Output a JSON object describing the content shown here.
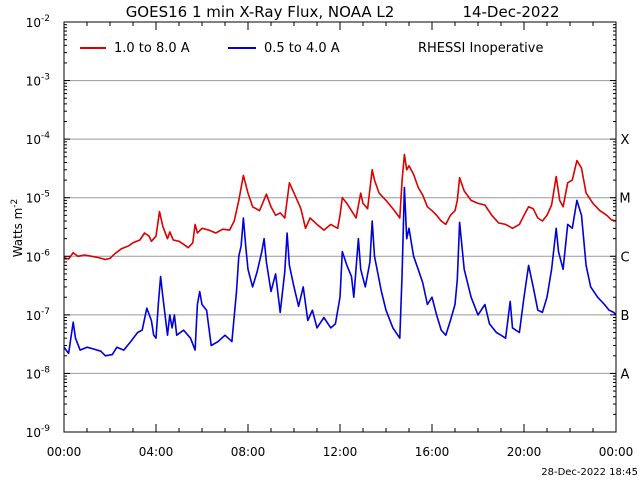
{
  "chart_data": {
    "type": "line",
    "title": "GOES16 1 min X-Ray Flux, NOAA L2",
    "date": "14-Dec-2022",
    "ylabel_main": "Watts m",
    "ylabel_sup": "-2",
    "y_scale": "log",
    "ylim": [
      1e-09,
      0.01
    ],
    "y_ticks": [
      {
        "base": "10",
        "exp": "-2",
        "value": 0.01
      },
      {
        "base": "10",
        "exp": "-3",
        "value": 0.001
      },
      {
        "base": "10",
        "exp": "-4",
        "value": 0.0001
      },
      {
        "base": "10",
        "exp": "-5",
        "value": 1e-05
      },
      {
        "base": "10",
        "exp": "-6",
        "value": 1e-06
      },
      {
        "base": "10",
        "exp": "-7",
        "value": 1e-07
      },
      {
        "base": "10",
        "exp": "-8",
        "value": 1e-08
      },
      {
        "base": "10",
        "exp": "-9",
        "value": 1e-09
      }
    ],
    "x_hours_range": [
      0,
      24
    ],
    "x_ticks": [
      "00:00",
      "04:00",
      "08:00",
      "12:00",
      "16:00",
      "20:00",
      "00:00"
    ],
    "flare_classes": [
      {
        "label": "X",
        "value": 0.0001
      },
      {
        "label": "M",
        "value": 1e-05
      },
      {
        "label": "C",
        "value": 1e-06
      },
      {
        "label": "B",
        "value": 1e-07
      },
      {
        "label": "A",
        "value": 1e-08
      }
    ],
    "grid": "horizontal at each decade",
    "legend_position": "top",
    "note": "RHESSI Inoperative",
    "series": [
      {
        "name": "1.0 to 8.0 A",
        "color": "#dd0000",
        "points": [
          [
            0.0,
            9.5e-07
          ],
          [
            0.2,
            9e-07
          ],
          [
            0.4,
            1.15e-06
          ],
          [
            0.6,
            1e-06
          ],
          [
            0.9,
            1.05e-06
          ],
          [
            1.2,
            1e-06
          ],
          [
            1.5,
            9.5e-07
          ],
          [
            1.8,
            8.8e-07
          ],
          [
            2.0,
            9.2e-07
          ],
          [
            2.2,
            1.1e-06
          ],
          [
            2.5,
            1.35e-06
          ],
          [
            2.8,
            1.5e-06
          ],
          [
            3.0,
            1.7e-06
          ],
          [
            3.3,
            1.9e-06
          ],
          [
            3.5,
            2.5e-06
          ],
          [
            3.7,
            2.2e-06
          ],
          [
            3.8,
            1.8e-06
          ],
          [
            4.0,
            2.2e-06
          ],
          [
            4.15,
            5.8e-06
          ],
          [
            4.3,
            3.2e-06
          ],
          [
            4.5,
            2e-06
          ],
          [
            4.6,
            2.6e-06
          ],
          [
            4.75,
            1.9e-06
          ],
          [
            5.0,
            1.8e-06
          ],
          [
            5.2,
            1.6e-06
          ],
          [
            5.4,
            1.4e-06
          ],
          [
            5.6,
            1.7e-06
          ],
          [
            5.7,
            3.5e-06
          ],
          [
            5.8,
            2.5e-06
          ],
          [
            6.0,
            3e-06
          ],
          [
            6.3,
            2.8e-06
          ],
          [
            6.6,
            2.5e-06
          ],
          [
            6.9,
            2.9e-06
          ],
          [
            7.2,
            2.8e-06
          ],
          [
            7.4,
            4e-06
          ],
          [
            7.6,
            9e-06
          ],
          [
            7.8,
            2.4e-05
          ],
          [
            8.0,
            1.2e-05
          ],
          [
            8.2,
            7e-06
          ],
          [
            8.5,
            6e-06
          ],
          [
            8.8,
            1.15e-05
          ],
          [
            9.0,
            7e-06
          ],
          [
            9.2,
            5e-06
          ],
          [
            9.4,
            5.5e-06
          ],
          [
            9.6,
            4.5e-06
          ],
          [
            9.8,
            1.8e-05
          ],
          [
            10.0,
            1.2e-05
          ],
          [
            10.3,
            6.5e-06
          ],
          [
            10.5,
            3e-06
          ],
          [
            10.7,
            4.5e-06
          ],
          [
            11.0,
            3.5e-06
          ],
          [
            11.3,
            2.8e-06
          ],
          [
            11.6,
            3.5e-06
          ],
          [
            11.9,
            3e-06
          ],
          [
            12.0,
            5e-06
          ],
          [
            12.1,
            1e-05
          ],
          [
            12.3,
            8e-06
          ],
          [
            12.5,
            6e-06
          ],
          [
            12.7,
            4.5e-06
          ],
          [
            12.9,
            1.2e-05
          ],
          [
            13.0,
            8e-06
          ],
          [
            13.2,
            6.5e-06
          ],
          [
            13.4,
            3e-05
          ],
          [
            13.5,
            2e-05
          ],
          [
            13.7,
            1.2e-05
          ],
          [
            14.0,
            9e-06
          ],
          [
            14.3,
            6.5e-06
          ],
          [
            14.6,
            4.5e-06
          ],
          [
            14.7,
            2e-05
          ],
          [
            14.8,
            5.5e-05
          ],
          [
            14.9,
            3e-05
          ],
          [
            15.0,
            3.5e-05
          ],
          [
            15.2,
            2.5e-05
          ],
          [
            15.4,
            1.5e-05
          ],
          [
            15.6,
            1.1e-05
          ],
          [
            15.8,
            7e-06
          ],
          [
            16.0,
            6e-06
          ],
          [
            16.2,
            5e-06
          ],
          [
            16.4,
            4e-06
          ],
          [
            16.6,
            3.5e-06
          ],
          [
            16.8,
            5e-06
          ],
          [
            17.0,
            6e-06
          ],
          [
            17.1,
            9e-06
          ],
          [
            17.2,
            2.2e-05
          ],
          [
            17.4,
            1.3e-05
          ],
          [
            17.7,
            9e-06
          ],
          [
            18.0,
            8e-06
          ],
          [
            18.3,
            7.5e-06
          ],
          [
            18.6,
            5e-06
          ],
          [
            18.9,
            3.7e-06
          ],
          [
            19.2,
            3.5e-06
          ],
          [
            19.5,
            3e-06
          ],
          [
            19.8,
            3.5e-06
          ],
          [
            20.0,
            5e-06
          ],
          [
            20.2,
            7e-06
          ],
          [
            20.4,
            6.5e-06
          ],
          [
            20.6,
            4.5e-06
          ],
          [
            20.8,
            4e-06
          ],
          [
            21.0,
            5e-06
          ],
          [
            21.2,
            7.5e-06
          ],
          [
            21.4,
            2.3e-05
          ],
          [
            21.55,
            9e-06
          ],
          [
            21.7,
            7e-06
          ],
          [
            21.9,
            1.8e-05
          ],
          [
            22.1,
            2e-05
          ],
          [
            22.3,
            4.3e-05
          ],
          [
            22.5,
            3.2e-05
          ],
          [
            22.7,
            1.2e-05
          ],
          [
            23.0,
            8e-06
          ],
          [
            23.3,
            6e-06
          ],
          [
            23.6,
            5e-06
          ],
          [
            23.8,
            4.2e-06
          ],
          [
            24.0,
            4e-06
          ]
        ]
      },
      {
        "name": "0.5 to 4.0 A",
        "color": "#0000dd",
        "points": [
          [
            0.0,
            2.8e-08
          ],
          [
            0.2,
            2.2e-08
          ],
          [
            0.4,
            7.5e-08
          ],
          [
            0.5,
            4e-08
          ],
          [
            0.7,
            2.5e-08
          ],
          [
            1.0,
            2.8e-08
          ],
          [
            1.3,
            2.6e-08
          ],
          [
            1.6,
            2.4e-08
          ],
          [
            1.8,
            2e-08
          ],
          [
            2.1,
            2.1e-08
          ],
          [
            2.3,
            2.8e-08
          ],
          [
            2.6,
            2.5e-08
          ],
          [
            2.9,
            3.5e-08
          ],
          [
            3.2,
            5e-08
          ],
          [
            3.4,
            5.5e-08
          ],
          [
            3.6,
            1.3e-07
          ],
          [
            3.8,
            8e-08
          ],
          [
            3.9,
            4.5e-08
          ],
          [
            4.0,
            4e-08
          ],
          [
            4.1,
            1.5e-07
          ],
          [
            4.2,
            4.5e-07
          ],
          [
            4.3,
            2e-07
          ],
          [
            4.5,
            4.5e-08
          ],
          [
            4.6,
            1e-07
          ],
          [
            4.7,
            6e-08
          ],
          [
            4.8,
            1e-07
          ],
          [
            4.9,
            4.5e-08
          ],
          [
            5.2,
            5.5e-08
          ],
          [
            5.5,
            4e-08
          ],
          [
            5.7,
            2.5e-08
          ],
          [
            5.8,
            1.5e-07
          ],
          [
            5.9,
            2.5e-07
          ],
          [
            6.0,
            1.5e-07
          ],
          [
            6.2,
            1.2e-07
          ],
          [
            6.4,
            3e-08
          ],
          [
            6.7,
            3.5e-08
          ],
          [
            7.0,
            4.5e-08
          ],
          [
            7.3,
            3.5e-08
          ],
          [
            7.5,
            2.5e-07
          ],
          [
            7.6,
            1e-06
          ],
          [
            7.7,
            1.5e-06
          ],
          [
            7.8,
            4.5e-06
          ],
          [
            7.9,
            1.5e-06
          ],
          [
            8.0,
            6e-07
          ],
          [
            8.2,
            3e-07
          ],
          [
            8.4,
            5.5e-07
          ],
          [
            8.6,
            1.2e-06
          ],
          [
            8.7,
            2e-06
          ],
          [
            8.8,
            8e-07
          ],
          [
            9.0,
            2.5e-07
          ],
          [
            9.2,
            5e-07
          ],
          [
            9.4,
            1.1e-07
          ],
          [
            9.6,
            5.5e-07
          ],
          [
            9.7,
            2.5e-06
          ],
          [
            9.8,
            7e-07
          ],
          [
            10.0,
            3e-07
          ],
          [
            10.2,
            1.4e-07
          ],
          [
            10.4,
            3e-07
          ],
          [
            10.6,
            8e-08
          ],
          [
            10.8,
            1.2e-07
          ],
          [
            11.0,
            6e-08
          ],
          [
            11.3,
            9e-08
          ],
          [
            11.6,
            6e-08
          ],
          [
            11.8,
            7e-08
          ],
          [
            12.0,
            2e-07
          ],
          [
            12.1,
            1.2e-06
          ],
          [
            12.3,
            7e-07
          ],
          [
            12.5,
            4.5e-07
          ],
          [
            12.6,
            2e-07
          ],
          [
            12.8,
            2e-06
          ],
          [
            12.9,
            6e-07
          ],
          [
            13.1,
            3e-07
          ],
          [
            13.3,
            8e-07
          ],
          [
            13.4,
            4e-06
          ],
          [
            13.5,
            1e-06
          ],
          [
            13.8,
            2.5e-07
          ],
          [
            14.0,
            1.2e-07
          ],
          [
            14.3,
            6e-08
          ],
          [
            14.6,
            4e-08
          ],
          [
            14.7,
            5e-07
          ],
          [
            14.8,
            1.5e-05
          ],
          [
            14.9,
            2e-06
          ],
          [
            15.0,
            3e-06
          ],
          [
            15.2,
            1e-06
          ],
          [
            15.4,
            6e-07
          ],
          [
            15.6,
            3.5e-07
          ],
          [
            15.8,
            1.5e-07
          ],
          [
            16.0,
            2e-07
          ],
          [
            16.2,
            1e-07
          ],
          [
            16.4,
            5.5e-08
          ],
          [
            16.6,
            4.5e-08
          ],
          [
            16.8,
            8e-08
          ],
          [
            17.0,
            1.5e-07
          ],
          [
            17.1,
            4e-07
          ],
          [
            17.2,
            3.8e-06
          ],
          [
            17.4,
            6e-07
          ],
          [
            17.7,
            2e-07
          ],
          [
            18.0,
            1e-07
          ],
          [
            18.3,
            1.5e-07
          ],
          [
            18.5,
            7e-08
          ],
          [
            18.8,
            5e-08
          ],
          [
            19.0,
            4.5e-08
          ],
          [
            19.2,
            4e-08
          ],
          [
            19.4,
            1.7e-07
          ],
          [
            19.5,
            6e-08
          ],
          [
            19.8,
            5e-08
          ],
          [
            20.0,
            2e-07
          ],
          [
            20.2,
            7e-07
          ],
          [
            20.4,
            3e-07
          ],
          [
            20.6,
            1.2e-07
          ],
          [
            20.8,
            1.1e-07
          ],
          [
            21.0,
            2e-07
          ],
          [
            21.2,
            6e-07
          ],
          [
            21.4,
            3e-06
          ],
          [
            21.5,
            1.2e-06
          ],
          [
            21.7,
            6e-07
          ],
          [
            21.9,
            3.5e-06
          ],
          [
            22.1,
            3e-06
          ],
          [
            22.3,
            9e-06
          ],
          [
            22.5,
            5e-06
          ],
          [
            22.7,
            7e-07
          ],
          [
            22.9,
            3e-07
          ],
          [
            23.2,
            2e-07
          ],
          [
            23.5,
            1.5e-07
          ],
          [
            23.7,
            1.2e-07
          ],
          [
            23.9,
            1.1e-07
          ],
          [
            24.0,
            1e-07
          ]
        ]
      }
    ]
  },
  "footer": {
    "timestamp": "28-Dec-2022 18:45"
  }
}
